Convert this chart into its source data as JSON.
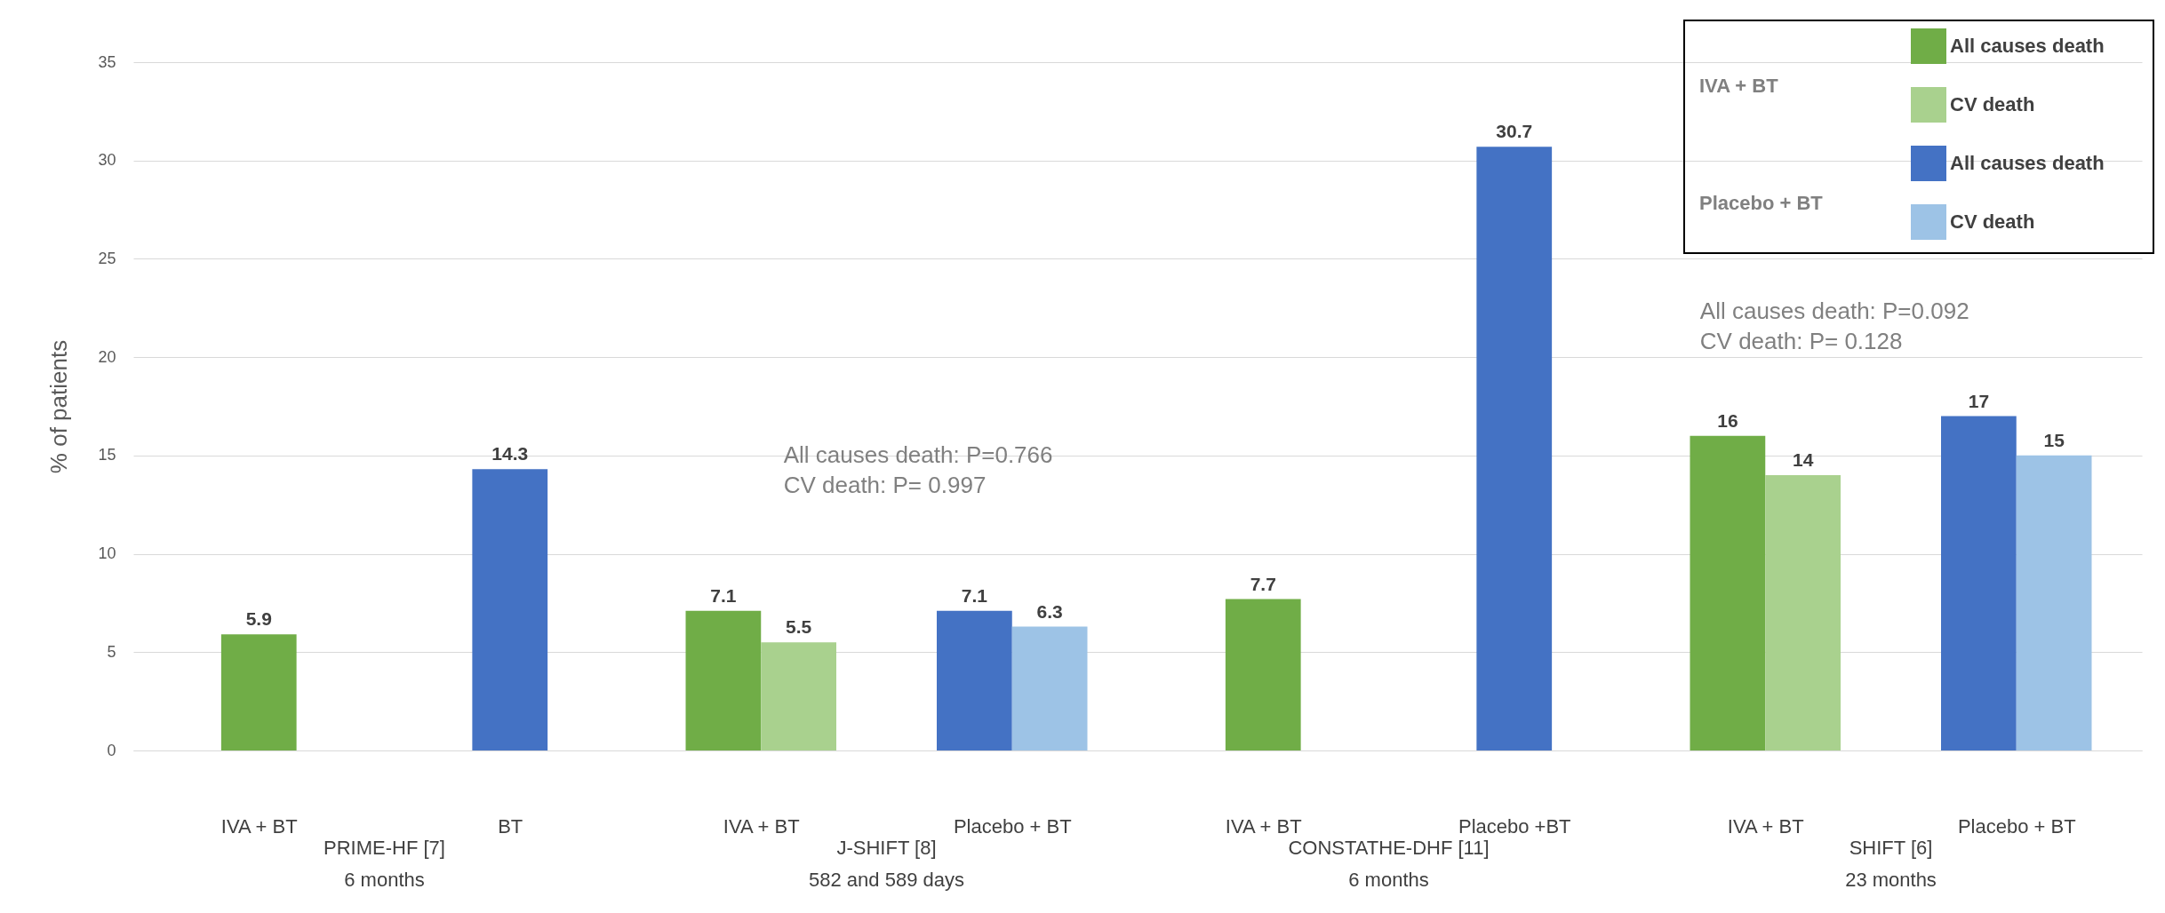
{
  "chart_data": {
    "type": "bar",
    "ylabel": "% of patients",
    "categories": [
      "IVA + BT",
      "BT",
      "IVA + BT",
      "Placebo + BT",
      "IVA + BT",
      "Placebo +BT",
      "IVA + BT",
      "Placebo + BT"
    ],
    "series": [
      {
        "name": "All causes death",
        "color": "#70ad47",
        "values": [
          5.9,
          null,
          7.1,
          null,
          7.7,
          null,
          16,
          null
        ]
      },
      {
        "name": "CV death",
        "color": "#a9d18e",
        "values": [
          null,
          null,
          5.5,
          null,
          null,
          null,
          14,
          null
        ]
      },
      {
        "name": "All causes death",
        "color": "#4472c4",
        "values": [
          null,
          14.3,
          null,
          7.1,
          null,
          30.7,
          null,
          17
        ]
      },
      {
        "name": "CV death",
        "color": "#9dc3e6",
        "values": [
          null,
          null,
          null,
          6.3,
          null,
          null,
          null,
          15
        ]
      }
    ],
    "ylim": [
      0,
      35
    ],
    "yticks": [
      0,
      5,
      10,
      15,
      20,
      25,
      30,
      35
    ],
    "grid": "y",
    "data_labels": true,
    "legend": "top right",
    "annotations": [
      "PRIME-HF [7]\n6 months",
      "J-SHIFT [8]\n582 and 589 days",
      "CONSTATHE-DHF [11]\n6 months",
      "SHIFT [6]\n23 months",
      "IVA + BT",
      "Placebo + BT",
      "All causes death: P=0.766\nCV death: P= 0.997",
      "All causes death: P=0.092\nCV death: P= 0.128"
    ]
  }
}
